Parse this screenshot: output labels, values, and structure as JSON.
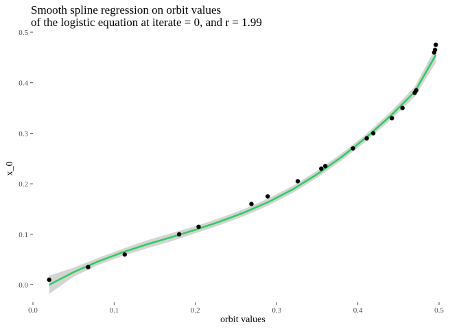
{
  "chart_data": {
    "type": "scatter",
    "title_line1": "Smooth spline regression on orbit values",
    "title_line2": "of the logistic equation at iterate = 0, and r = 1.99",
    "xlabel": "orbit values",
    "ylabel": "x_0",
    "xlim": [
      0.0,
      0.5
    ],
    "ylim": [
      -0.04,
      0.5
    ],
    "x_ticks": [
      0.0,
      0.1,
      0.2,
      0.3,
      0.4,
      0.5
    ],
    "x_tick_labels": [
      "0.0",
      "0.1",
      "0.2",
      "0.3",
      "0.4",
      "0.5"
    ],
    "y_ticks": [
      0.0,
      0.1,
      0.2,
      0.3,
      0.4,
      0.5
    ],
    "y_tick_labels": [
      "0.0",
      "0.1",
      "0.2",
      "0.3",
      "0.4",
      "0.5"
    ],
    "grid": false,
    "points": [
      {
        "x": 0.02,
        "y": 0.01
      },
      {
        "x": 0.068,
        "y": 0.035
      },
      {
        "x": 0.113,
        "y": 0.06
      },
      {
        "x": 0.18,
        "y": 0.1
      },
      {
        "x": 0.204,
        "y": 0.115
      },
      {
        "x": 0.269,
        "y": 0.16
      },
      {
        "x": 0.289,
        "y": 0.175
      },
      {
        "x": 0.326,
        "y": 0.205
      },
      {
        "x": 0.355,
        "y": 0.23
      },
      {
        "x": 0.36,
        "y": 0.235
      },
      {
        "x": 0.394,
        "y": 0.27
      },
      {
        "x": 0.411,
        "y": 0.29
      },
      {
        "x": 0.419,
        "y": 0.3
      },
      {
        "x": 0.442,
        "y": 0.33
      },
      {
        "x": 0.455,
        "y": 0.35
      },
      {
        "x": 0.47,
        "y": 0.38
      },
      {
        "x": 0.472,
        "y": 0.385
      },
      {
        "x": 0.494,
        "y": 0.46
      },
      {
        "x": 0.495,
        "y": 0.465
      },
      {
        "x": 0.496,
        "y": 0.475
      }
    ],
    "smooth_line": {
      "x": [
        0.02,
        0.05,
        0.08,
        0.11,
        0.14,
        0.17,
        0.2,
        0.23,
        0.26,
        0.29,
        0.32,
        0.35,
        0.38,
        0.41,
        0.44,
        0.47,
        0.496
      ],
      "y": [
        0.0,
        0.025,
        0.046,
        0.064,
        0.08,
        0.094,
        0.109,
        0.125,
        0.143,
        0.164,
        0.189,
        0.219,
        0.253,
        0.291,
        0.334,
        0.382,
        0.455
      ]
    },
    "confidence_band": {
      "lower": [
        -0.018,
        0.016,
        0.039,
        0.057,
        0.072,
        0.086,
        0.102,
        0.118,
        0.136,
        0.157,
        0.182,
        0.212,
        0.246,
        0.284,
        0.326,
        0.372,
        0.44
      ],
      "upper": [
        0.018,
        0.034,
        0.053,
        0.071,
        0.088,
        0.102,
        0.116,
        0.132,
        0.15,
        0.171,
        0.196,
        0.226,
        0.26,
        0.298,
        0.342,
        0.392,
        0.47
      ]
    },
    "colors": {
      "line": "#2ecc5f",
      "band": "#cccccc",
      "points": "#000000",
      "ticks": "#4d4d4d"
    }
  }
}
